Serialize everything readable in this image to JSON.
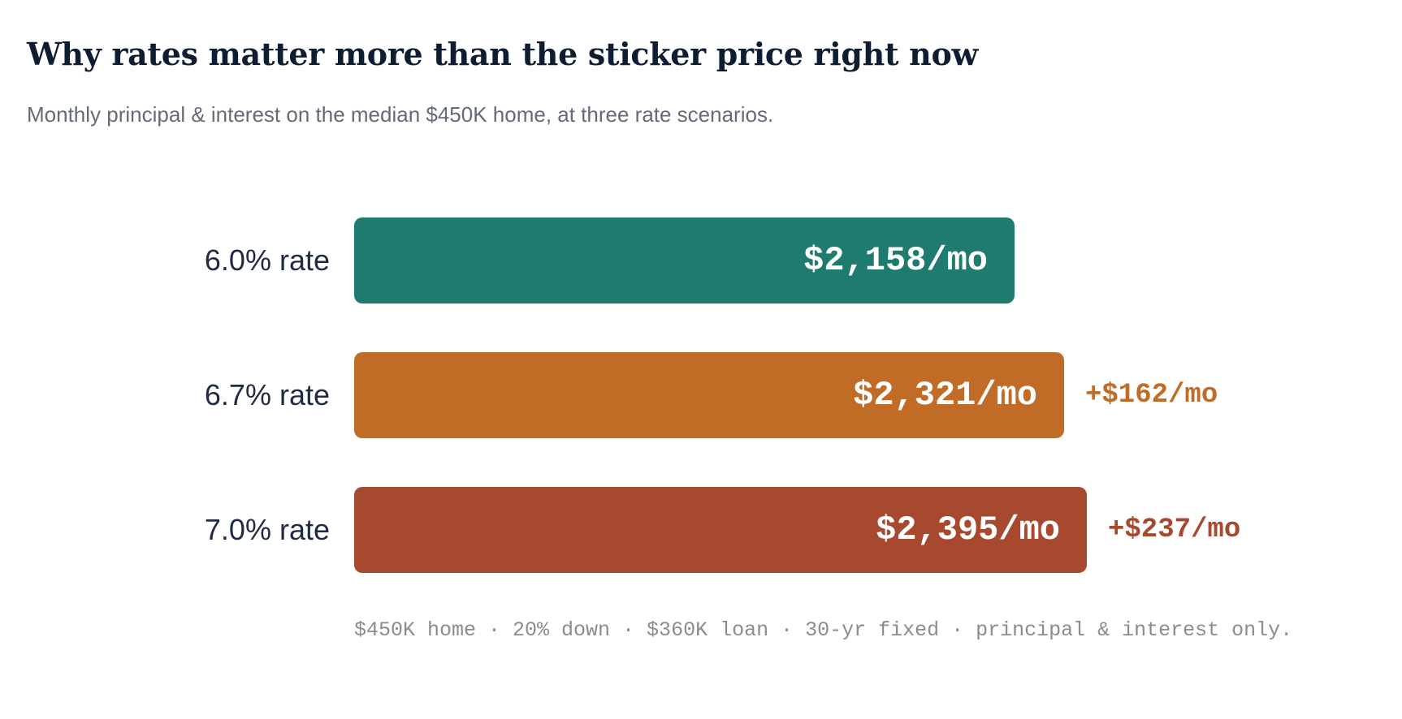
{
  "chart_data": {
    "type": "bar",
    "orientation": "horizontal",
    "title": "Why rates matter more than the sticker price right now",
    "subtitle": "Monthly principal & interest on the median $450K home, at three rate scenarios.",
    "categories": [
      "6.0% rate",
      "6.7% rate",
      "7.0% rate"
    ],
    "values": [
      2158,
      2321,
      2395
    ],
    "value_labels": [
      "$2,158/mo",
      "$2,321/mo",
      "$2,395/mo"
    ],
    "deltas": [
      "",
      "+$162/mo",
      "+$237/mo"
    ],
    "colors": [
      "#1f7b6e",
      "#c06c27",
      "#a6492e"
    ],
    "delta_colors": [
      "",
      "#c06c27",
      "#a6492e"
    ],
    "footnote": "$450K home · 20% down · $360K loan · 30-yr fixed · principal & interest only.",
    "grid": false,
    "legend": "none"
  }
}
